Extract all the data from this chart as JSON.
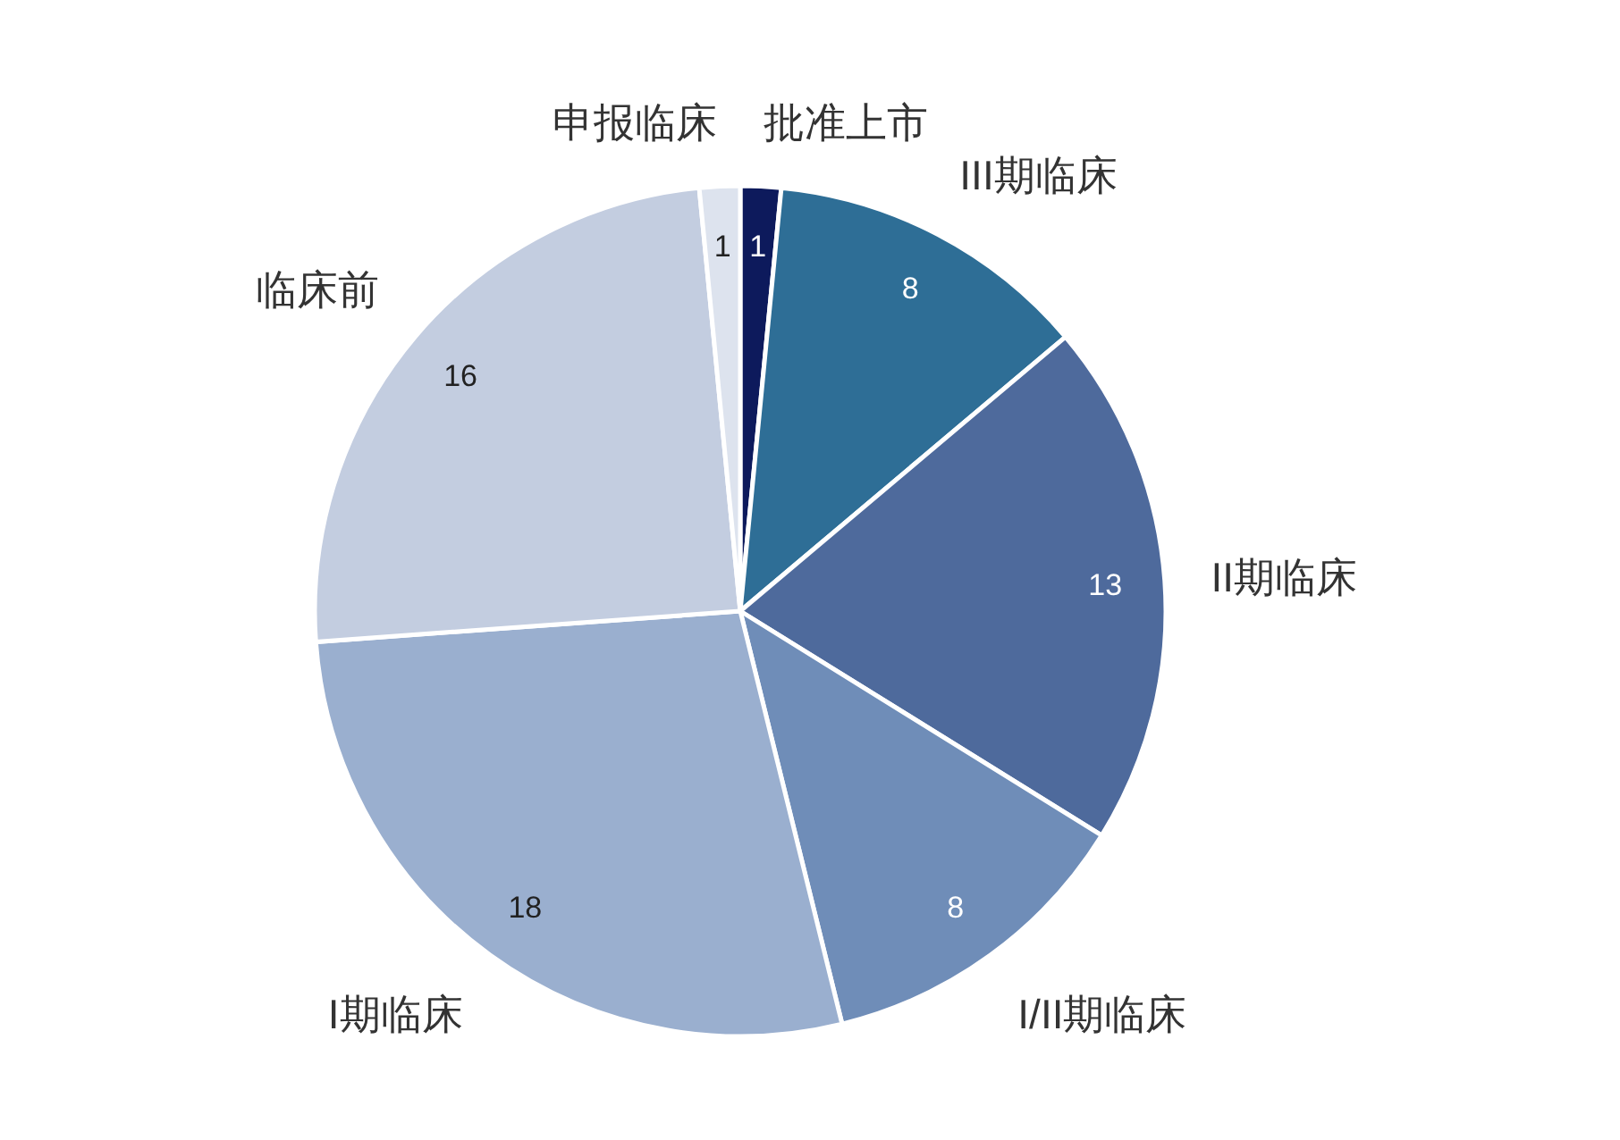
{
  "chart_data": {
    "type": "pie",
    "categories": [
      "批准上市",
      "III期临床",
      "II期临床",
      "I/II期临床",
      "I期临床",
      "临床前",
      "申报临床"
    ],
    "values": [
      1,
      8,
      13,
      8,
      18,
      16,
      1
    ],
    "colors": [
      "#0d1a5c",
      "#2e6e96",
      "#4e6a9c",
      "#6f8db8",
      "#9aafcf",
      "#c3cde0",
      "#dde3ee"
    ],
    "data_labels": true
  }
}
